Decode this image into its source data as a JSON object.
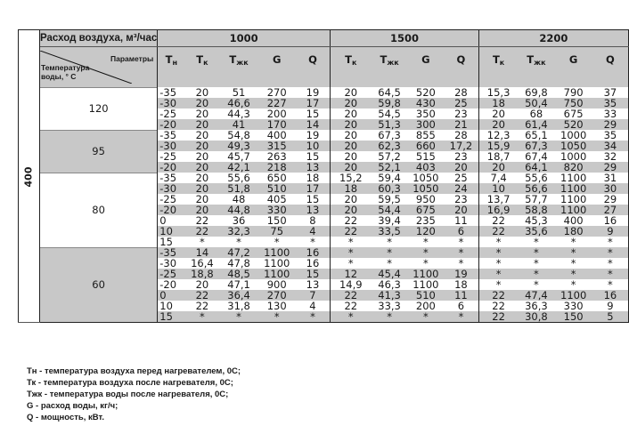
{
  "header": {
    "air_flow_label": "Расход воздуха, м³/час",
    "params_label": "Параметры",
    "water_temp_label_line1": "Температура",
    "water_temp_label_line2": "воды, ° С",
    "row_label": "400",
    "flows": [
      "1000",
      "1500",
      "2200"
    ],
    "params_1000": [
      {
        "main": "Т",
        "sub": "н"
      },
      {
        "main": "Т",
        "sub": "к"
      },
      {
        "main": "Т",
        "sub": "жк"
      },
      {
        "main": "G",
        "sub": ""
      },
      {
        "main": "Q",
        "sub": ""
      }
    ],
    "params_other": [
      {
        "main": "Т",
        "sub": "к"
      },
      {
        "main": "Т",
        "sub": "жк"
      },
      {
        "main": "G",
        "sub": ""
      },
      {
        "main": "Q",
        "sub": ""
      }
    ]
  },
  "groups": [
    {
      "water_temp": "120",
      "rows": [
        [
          "-35",
          "20",
          "51",
          "270",
          "19",
          "20",
          "64,5",
          "520",
          "28",
          "15,3",
          "69,8",
          "790",
          "37"
        ],
        [
          "-30",
          "20",
          "46,6",
          "227",
          "17",
          "20",
          "59,8",
          "430",
          "25",
          "18",
          "50,4",
          "750",
          "35"
        ],
        [
          "-25",
          "20",
          "44,3",
          "200",
          "15",
          "20",
          "54,5",
          "350",
          "23",
          "20",
          "68",
          "675",
          "33"
        ],
        [
          "-20",
          "20",
          "41",
          "170",
          "14",
          "20",
          "51,3",
          "300",
          "21",
          "20",
          "61,4",
          "520",
          "29"
        ]
      ]
    },
    {
      "water_temp": "95",
      "rows": [
        [
          "-35",
          "20",
          "54,8",
          "400",
          "19",
          "20",
          "67,3",
          "855",
          "28",
          "12,3",
          "65,1",
          "1000",
          "35"
        ],
        [
          "-30",
          "20",
          "49,3",
          "315",
          "10",
          "20",
          "62,3",
          "660",
          "17,2",
          "15,9",
          "67,3",
          "1050",
          "34"
        ],
        [
          "-25",
          "20",
          "45,7",
          "263",
          "15",
          "20",
          "57,2",
          "515",
          "23",
          "18,7",
          "67,4",
          "1000",
          "32"
        ],
        [
          "-20",
          "20",
          "42,1",
          "218",
          "13",
          "20",
          "52,1",
          "403",
          "20",
          "20",
          "64,1",
          "820",
          "29"
        ]
      ]
    },
    {
      "water_temp": "80",
      "rows": [
        [
          "-35",
          "20",
          "55,6",
          "650",
          "18",
          "15,2",
          "59,4",
          "1050",
          "25",
          "7,4",
          "55,6",
          "1100",
          "31"
        ],
        [
          "-30",
          "20",
          "51,8",
          "510",
          "17",
          "18",
          "60,3",
          "1050",
          "24",
          "10",
          "56,6",
          "1100",
          "30"
        ],
        [
          "-25",
          "20",
          "48",
          "405",
          "15",
          "20",
          "59,5",
          "950",
          "23",
          "13,7",
          "57,7",
          "1100",
          "29"
        ],
        [
          "-20",
          "20",
          "44,8",
          "330",
          "13",
          "20",
          "54,4",
          "675",
          "20",
          "16,9",
          "58,8",
          "1100",
          "27"
        ],
        [
          "0",
          "22",
          "36",
          "150",
          "8",
          "22",
          "39,4",
          "235",
          "11",
          "22",
          "45,3",
          "400",
          "16"
        ],
        [
          "10",
          "22",
          "32,3",
          "75",
          "4",
          "22",
          "33,5",
          "120",
          "6",
          "22",
          "35,6",
          "180",
          "9"
        ],
        [
          "15",
          "*",
          "*",
          "*",
          "*",
          "*",
          "*",
          "*",
          "*",
          "*",
          "*",
          "*",
          "*"
        ]
      ]
    },
    {
      "water_temp": "60",
      "rows": [
        [
          "-35",
          "14",
          "47,2",
          "1100",
          "16",
          "*",
          "*",
          "*",
          "*",
          "*",
          "*",
          "*",
          "*"
        ],
        [
          "-30",
          "16,4",
          "47,8",
          "1100",
          "16",
          "*",
          "*",
          "*",
          "*",
          "*",
          "*",
          "*",
          "*"
        ],
        [
          "-25",
          "18,8",
          "48,5",
          "1100",
          "15",
          "12",
          "45,4",
          "1100",
          "19",
          "*",
          "*",
          "*",
          "*"
        ],
        [
          "-20",
          "20",
          "47,1",
          "900",
          "13",
          "14,9",
          "46,3",
          "1100",
          "18",
          "*",
          "*",
          "*",
          "*"
        ],
        [
          "0",
          "22",
          "36,4",
          "270",
          "7",
          "22",
          "41,3",
          "510",
          "11",
          "22",
          "47,4",
          "1100",
          "16"
        ],
        [
          "10",
          "22",
          "31,8",
          "130",
          "4",
          "22",
          "33,3",
          "200",
          "6",
          "22",
          "36,3",
          "330",
          "9"
        ],
        [
          "15",
          "*",
          "*",
          "*",
          "*",
          "*",
          "*",
          "*",
          "*",
          "22",
          "30,8",
          "150",
          "5"
        ]
      ]
    }
  ],
  "legend": [
    "Тн - температура воздуха перед нагревателем, 0С;",
    "Тк - температура воздуха после нагревателя, 0С;",
    "Тжк - температура воды после нагревателя, 0С;",
    "G - расход воды, кг/ч;",
    "Q - мощность, кВт."
  ]
}
